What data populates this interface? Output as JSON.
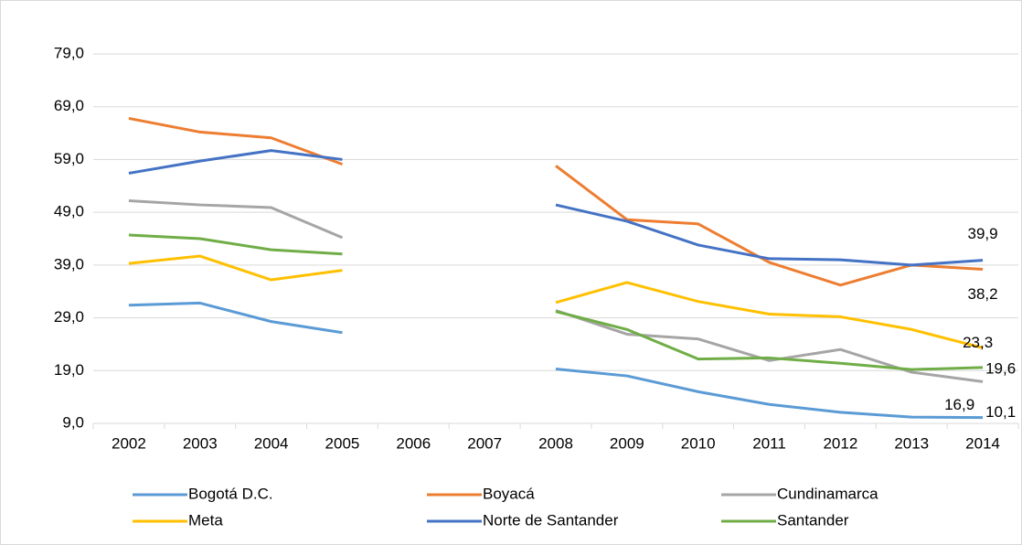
{
  "chart_data": {
    "type": "line",
    "categories": [
      "2002",
      "2003",
      "2004",
      "2005",
      "2006",
      "2007",
      "2008",
      "2009",
      "2010",
      "2011",
      "2012",
      "2013",
      "2014"
    ],
    "ylim": [
      9,
      79
    ],
    "yticks": [
      {
        "value": 9,
        "label": "9,0"
      },
      {
        "value": 19,
        "label": "19,0"
      },
      {
        "value": 29,
        "label": "29,0"
      },
      {
        "value": 39,
        "label": "39,0"
      },
      {
        "value": 49,
        "label": "49,0"
      },
      {
        "value": 59,
        "label": "59,0"
      },
      {
        "value": 69,
        "label": "69,0"
      },
      {
        "value": 79,
        "label": "79,0"
      }
    ],
    "grid": true,
    "series": [
      {
        "name": "Bogotá D.C.",
        "color": "#5b9bd5",
        "values": [
          31.4,
          31.8,
          28.3,
          26.2,
          null,
          null,
          19.3,
          18.0,
          15.0,
          12.6,
          11.1,
          10.2,
          10.1
        ],
        "value_labels": [
          null,
          null,
          null,
          null,
          null,
          null,
          null,
          null,
          null,
          null,
          null,
          null,
          "10,1"
        ]
      },
      {
        "name": "Boyacá",
        "color": "#ed7d31",
        "values": [
          66.8,
          64.2,
          63.1,
          58.1,
          null,
          null,
          57.8,
          47.6,
          46.8,
          39.5,
          35.2,
          39.0,
          38.2
        ],
        "value_labels": [
          null,
          null,
          null,
          null,
          null,
          null,
          null,
          null,
          null,
          null,
          null,
          null,
          "38,2"
        ]
      },
      {
        "name": "Cundinamarca",
        "color": "#a5a5a5",
        "values": [
          51.2,
          50.4,
          49.9,
          44.2,
          null,
          null,
          30.4,
          25.9,
          25.0,
          20.9,
          23.0,
          18.7,
          16.9
        ],
        "value_labels": [
          null,
          null,
          null,
          null,
          null,
          null,
          null,
          null,
          null,
          null,
          null,
          null,
          "16,9"
        ]
      },
      {
        "name": "Meta",
        "color": "#ffc000",
        "values": [
          39.3,
          40.7,
          36.2,
          38.0,
          null,
          null,
          31.9,
          35.7,
          32.1,
          29.7,
          29.2,
          26.8,
          23.3
        ],
        "value_labels": [
          null,
          null,
          null,
          null,
          null,
          null,
          null,
          null,
          null,
          null,
          null,
          null,
          "23,3"
        ]
      },
      {
        "name": "Norte de Santander",
        "color": "#4472c4",
        "values": [
          56.4,
          58.7,
          60.7,
          59.0,
          null,
          null,
          50.4,
          47.3,
          42.8,
          40.2,
          40.0,
          39.0,
          39.9
        ],
        "value_labels": [
          null,
          null,
          null,
          null,
          null,
          null,
          null,
          null,
          null,
          null,
          null,
          null,
          "39,9"
        ]
      },
      {
        "name": "Santander",
        "color": "#70ad47",
        "values": [
          44.7,
          44.0,
          41.9,
          41.1,
          null,
          null,
          30.2,
          26.8,
          21.2,
          21.4,
          20.4,
          19.2,
          19.6
        ],
        "value_labels": [
          null,
          null,
          null,
          null,
          null,
          null,
          null,
          null,
          null,
          null,
          null,
          null,
          "19,6"
        ]
      }
    ]
  }
}
